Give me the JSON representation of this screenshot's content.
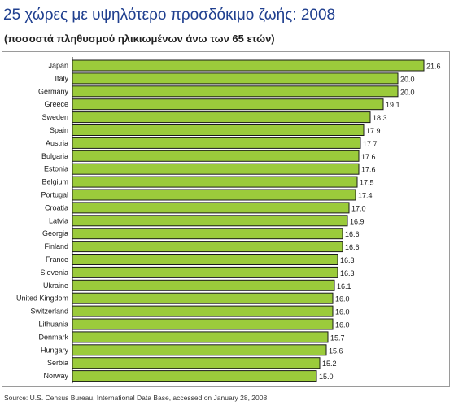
{
  "chart_data": {
    "type": "bar",
    "orientation": "horizontal",
    "title": "25 χώρες με υψηλότερο προσδόκιμο ζωής: 2008",
    "subtitle": "(ποσοστά πληθυσμού ηλικιωμένων άνω των 65 ετών)",
    "categories": [
      "Japan",
      "Italy",
      "Germany",
      "Greece",
      "Sweden",
      "Spain",
      "Austria",
      "Bulgaria",
      "Estonia",
      "Belgium",
      "Portugal",
      "Croatia",
      "Latvia",
      "Georgia",
      "Finland",
      "France",
      "Slovenia",
      "Ukraine",
      "United Kingdom",
      "Switzerland",
      "Lithuania",
      "Denmark",
      "Hungary",
      "Serbia",
      "Norway"
    ],
    "values": [
      21.6,
      20.0,
      20.0,
      19.1,
      18.3,
      17.9,
      17.7,
      17.6,
      17.6,
      17.5,
      17.4,
      17.0,
      16.9,
      16.6,
      16.6,
      16.3,
      16.3,
      16.1,
      16.0,
      16.0,
      16.0,
      15.7,
      15.6,
      15.2,
      15.0
    ],
    "value_labels": [
      "21.6",
      "20.0",
      "20.0",
      "19.1",
      "18.3",
      "17.9",
      "17.7",
      "17.6",
      "17.6",
      "17.5",
      "17.4",
      "17.0",
      "16.9",
      "16.6",
      "16.6",
      "16.3",
      "16.3",
      "16.1",
      "16.0",
      "16.0",
      "16.0",
      "15.7",
      "15.6",
      "15.2",
      "15.0"
    ],
    "xlim": [
      0,
      21.6
    ],
    "bar_color": "#9bcb3b",
    "grid": false,
    "legend": "none",
    "source": "Source: U.S. Census Bureau, International Data Base, accessed on January 28, 2008."
  }
}
